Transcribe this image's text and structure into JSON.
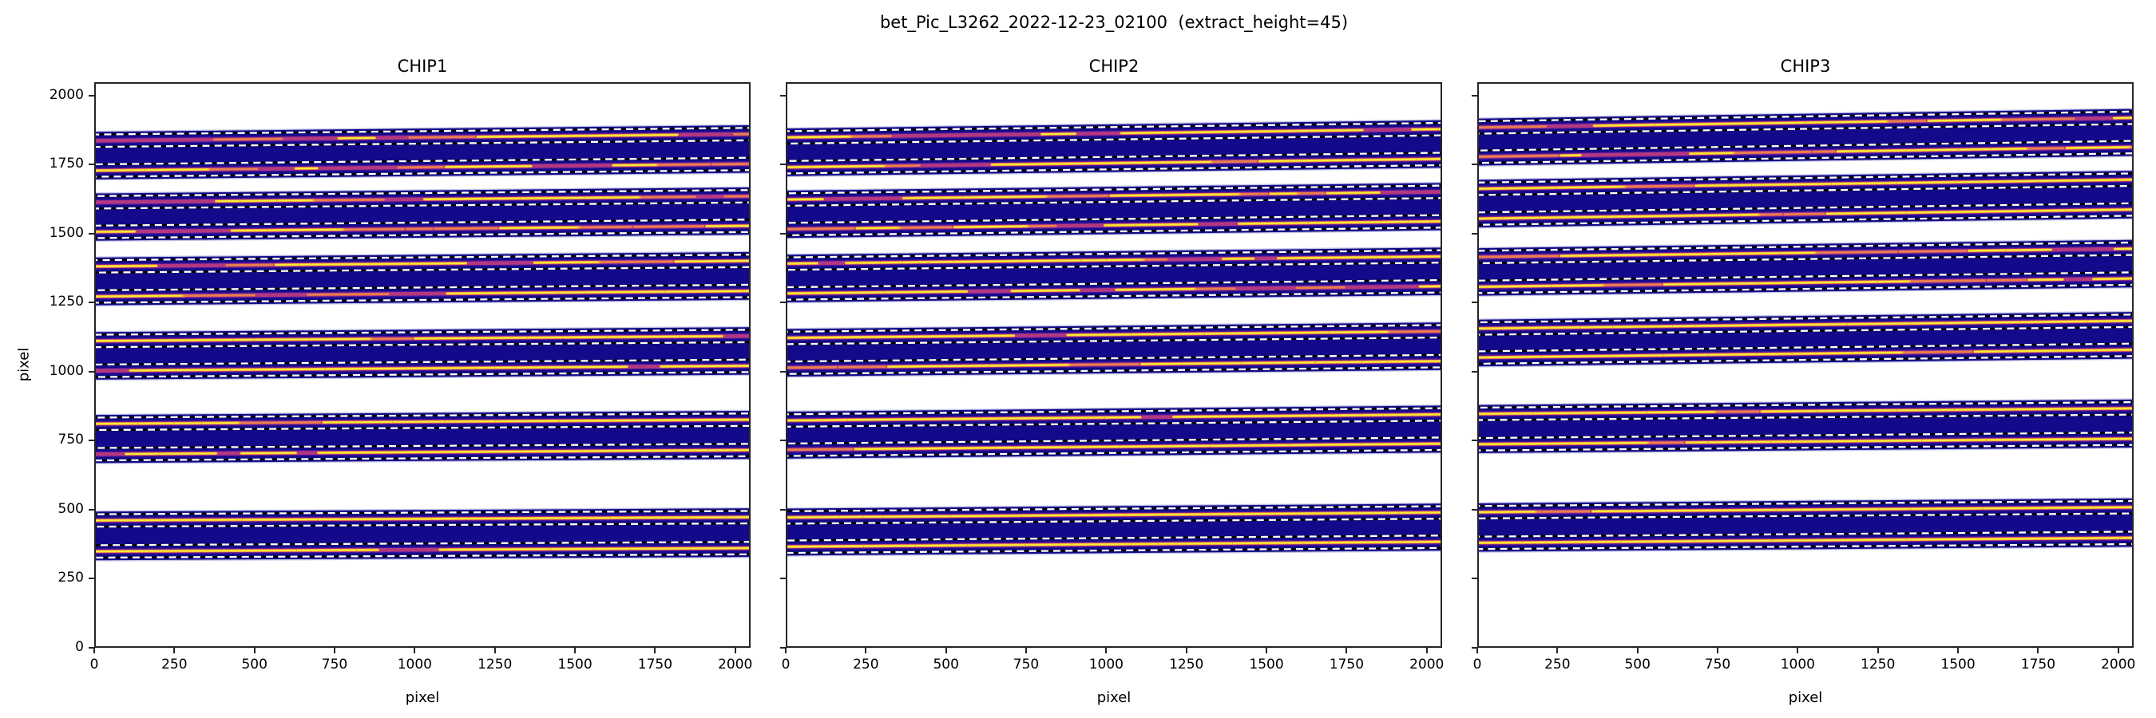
{
  "figure": {
    "suptitle": "bet_Pic_L3262_2022-12-23_02100  (extract_height=45)",
    "background": "#ffffff"
  },
  "chart_data": {
    "type": "heatmap",
    "title": "bet_Pic_L3262_2022-12-23_02100  (extract_height=45)",
    "description": "Three echelle spectrograph detector panels showing 2D spectral order cutouts (plasma colormap) with bright extracted traces and dashed extraction-aperture boundary lines",
    "extract_height": 45,
    "xlabel": "pixel",
    "ylabel": "pixel",
    "xlim": [
      0,
      2048
    ],
    "ylim": [
      0,
      2048
    ],
    "xticks": [
      0,
      250,
      500,
      750,
      1000,
      1250,
      1500,
      1750,
      2000
    ],
    "yticks": [
      0,
      250,
      500,
      750,
      1000,
      1250,
      1500,
      1750,
      2000
    ],
    "grid": false,
    "legend": "none",
    "band_half_height": 34,
    "aperture_half_height": 22.5,
    "colors": {
      "band_background": "#120a8a",
      "trace_outer_glow": "#7d22a8",
      "trace_glow": "#c73e7c",
      "trace_mid": "#f9993d",
      "trace_core": "#f5ee35",
      "aperture_dash_white": "#ffffff",
      "aperture_dash_black": "#000000",
      "band_edge_light": "#c6c6e8",
      "spine": "#262626",
      "text": "#000000"
    },
    "panels": [
      {
        "title": "CHIP1",
        "orders": [
          {
            "y_left": 1836,
            "y_right": 1860,
            "frag": 0.5
          },
          {
            "y_left": 1728,
            "y_right": 1752,
            "frag": 0.5
          },
          {
            "y_left": 1613,
            "y_right": 1635,
            "frag": 0.45
          },
          {
            "y_left": 1506,
            "y_right": 1528,
            "frag": 0.45
          },
          {
            "y_left": 1381,
            "y_right": 1401,
            "frag": 0.42
          },
          {
            "y_left": 1272,
            "y_right": 1292,
            "frag": 0.42
          },
          {
            "y_left": 1111,
            "y_right": 1129,
            "frag": 0.2
          },
          {
            "y_left": 1003,
            "y_right": 1021,
            "frag": 0.2
          },
          {
            "y_left": 811,
            "y_right": 826,
            "frag": 0.05
          },
          {
            "y_left": 701,
            "y_right": 716,
            "frag": 0.05
          },
          {
            "y_left": 461,
            "y_right": 473,
            "frag": 0.04
          },
          {
            "y_left": 349,
            "y_right": 361,
            "frag": 0.04
          }
        ]
      },
      {
        "title": "CHIP2",
        "orders": [
          {
            "y_left": 1848,
            "y_right": 1878,
            "frag": 0.45
          },
          {
            "y_left": 1740,
            "y_right": 1770,
            "frag": 0.45
          },
          {
            "y_left": 1623,
            "y_right": 1651,
            "frag": 0.4
          },
          {
            "y_left": 1516,
            "y_right": 1544,
            "frag": 0.4
          },
          {
            "y_left": 1391,
            "y_right": 1417,
            "frag": 0.38
          },
          {
            "y_left": 1283,
            "y_right": 1309,
            "frag": 0.38
          },
          {
            "y_left": 1122,
            "y_right": 1146,
            "frag": 0.28
          },
          {
            "y_left": 1014,
            "y_right": 1038,
            "frag": 0.28
          },
          {
            "y_left": 823,
            "y_right": 845,
            "frag": 0.06
          },
          {
            "y_left": 717,
            "y_right": 739,
            "frag": 0.06
          },
          {
            "y_left": 472,
            "y_right": 490,
            "frag": 0.04
          },
          {
            "y_left": 366,
            "y_right": 384,
            "frag": 0.04
          }
        ]
      },
      {
        "title": "CHIP3",
        "orders": [
          {
            "y_left": 1884,
            "y_right": 1919,
            "frag": 0.4
          },
          {
            "y_left": 1778,
            "y_right": 1813,
            "frag": 0.4
          },
          {
            "y_left": 1662,
            "y_right": 1695,
            "frag": 0.38
          },
          {
            "y_left": 1554,
            "y_right": 1587,
            "frag": 0.38
          },
          {
            "y_left": 1415,
            "y_right": 1445,
            "frag": 0.3
          },
          {
            "y_left": 1307,
            "y_right": 1337,
            "frag": 0.3
          },
          {
            "y_left": 1156,
            "y_right": 1184,
            "frag": 0.12
          },
          {
            "y_left": 1051,
            "y_right": 1079,
            "frag": 0.12
          },
          {
            "y_left": 847,
            "y_right": 867,
            "frag": 0.04
          },
          {
            "y_left": 737,
            "y_right": 757,
            "frag": 0.04
          },
          {
            "y_left": 491,
            "y_right": 509,
            "frag": 0.04
          },
          {
            "y_left": 380,
            "y_right": 398,
            "frag": 0.04
          }
        ]
      }
    ]
  }
}
